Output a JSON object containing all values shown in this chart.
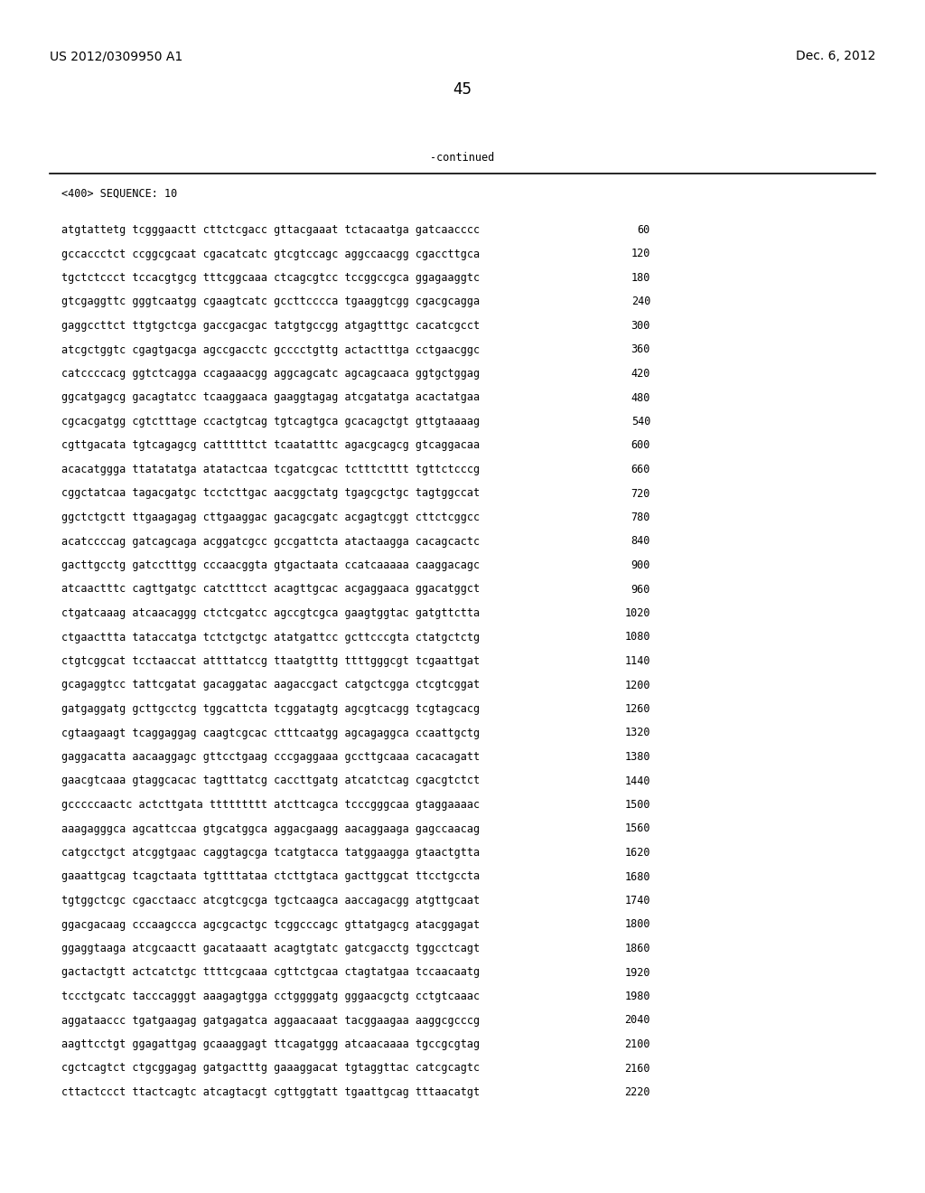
{
  "header_left": "US 2012/0309950 A1",
  "header_right": "Dec. 6, 2012",
  "page_number": "45",
  "continued_text": "-continued",
  "sequence_label": "<400> SEQUENCE: 10",
  "background_color": "#ffffff",
  "text_color": "#000000",
  "font_size": 8.5,
  "header_font_size": 10,
  "mono_font_size": 8.5,
  "sequence_lines": [
    [
      "atgtattetg tcgggaactt cttctcgacc gttacgaaat tctacaatga gatcaacccc",
      "60"
    ],
    [
      "gccaccctct ccggcgcaat cgacatcatc gtcgtccagc aggccaacgg cgaccttgca",
      "120"
    ],
    [
      "tgctctccct tccacgtgcg tttcggcaaa ctcagcgtcc tccggccgca ggagaaggtc",
      "180"
    ],
    [
      "gtcgaggttc gggtcaatgg cgaagtcatc gccttcccca tgaaggtcgg cgacgcagga",
      "240"
    ],
    [
      "gaggccttct ttgtgctcga gaccgacgac tatgtgccgg atgagtttgc cacatcgcct",
      "300"
    ],
    [
      "atcgctggtc cgagtgacga agccgacctc gcccctgttg actactttga cctgaacggc",
      "360"
    ],
    [
      "catccccacg ggtctcagga ccagaaacgg aggcagcatc agcagcaaca ggtgctggag",
      "420"
    ],
    [
      "ggcatgagcg gacagtatcc tcaaggaaca gaaggtagag atcgatatga acactatgaa",
      "480"
    ],
    [
      "cgcacgatgg cgtctttage ccactgtcag tgtcagtgca gcacagctgt gttgtaaaag",
      "540"
    ],
    [
      "cgttgacata tgtcagagcg cattttttct tcaatatttc agacgcagcg gtcaggacaa",
      "600"
    ],
    [
      "acacatggga ttatatatga atatactcaa tcgatcgcac tctttctttt tgttctcccg",
      "660"
    ],
    [
      "cggctatcaa tagacgatgc tcctcttgac aacggctatg tgagcgctgc tagtggccat",
      "720"
    ],
    [
      "ggctctgctt ttgaagagag cttgaaggac gacagcgatc acgagtcggt cttctcggcc",
      "780"
    ],
    [
      "acatccccag gatcagcaga acggatcgcc gccgattcta atactaagga cacagcactc",
      "840"
    ],
    [
      "gacttgcctg gatcctttgg cccaacggta gtgactaata ccatcaaaaa caaggacagc",
      "900"
    ],
    [
      "atcaactttc cagttgatgc catctttcct acagttgcac acgaggaaca ggacatggct",
      "960"
    ],
    [
      "ctgatcaaag atcaacaggg ctctcgatcc agccgtcgca gaagtggtac gatgttctta",
      "1020"
    ],
    [
      "ctgaacttta tataccatga tctctgctgc atatgattcc gcttcccgta ctatgctctg",
      "1080"
    ],
    [
      "ctgtcggcat tcctaaccat attttatccg ttaatgtttg ttttgggcgt tcgaattgat",
      "1140"
    ],
    [
      "gcagaggtcc tattcgatat gacaggatac aagaccgact catgctcgga ctcgtcggat",
      "1200"
    ],
    [
      "gatgaggatg gcttgcctcg tggcattcta tcggatagtg agcgtcacgg tcgtagcacg",
      "1260"
    ],
    [
      "cgtaagaagt tcaggaggag caagtcgcac ctttcaatgg agcagaggca ccaattgctg",
      "1320"
    ],
    [
      "gaggacatta aacaaggagc gttcctgaag cccgaggaaa gccttgcaaa cacacagatt",
      "1380"
    ],
    [
      "gaacgtcaaa gtaggcacac tagtttatcg caccttgatg atcatctcag cgacgtctct",
      "1440"
    ],
    [
      "gcccccaactc actcttgata ttttttttt atcttcagca tcccgggcaa gtaggaaaac",
      "1500"
    ],
    [
      "aaagagggca agcattccaa gtgcatggca aggacgaagg aacaggaaga gagccaacag",
      "1560"
    ],
    [
      "catgcctgct atcggtgaac caggtagcga tcatgtacca tatggaagga gtaactgtta",
      "1620"
    ],
    [
      "gaaattgcag tcagctaata tgttttataa ctcttgtaca gacttggcat ttcctgccta",
      "1680"
    ],
    [
      "tgtggctcgc cgacctaacc atcgtcgcga tgctcaagca aaccagacgg atgttgcaat",
      "1740"
    ],
    [
      "ggacgacaag cccaagccca agcgcactgc tcggcccagc gttatgagcg atacggagat",
      "1800"
    ],
    [
      "ggaggtaaga atcgcaactt gacataaatt acagtgtatc gatcgacctg tggcctcagt",
      "1860"
    ],
    [
      "gactactgtt actcatctgc ttttcgcaaa cgttctgcaa ctagtatgaa tccaacaatg",
      "1920"
    ],
    [
      "tccctgcatc tacccagggt aaagagtgga cctggggatg gggaacgctg cctgtcaaac",
      "1980"
    ],
    [
      "aggataaccc tgatgaagag gatgagatca aggaacaaat tacggaagaa aaggcgcccg",
      "2040"
    ],
    [
      "aagttcctgt ggagattgag gcaaaggagt ttcagatggg atcaacaaaa tgccgcgtag",
      "2100"
    ],
    [
      "cgctcagtct ctgcggagag gatgactttg gaaaggacat tgtaggttac catcgcagtc",
      "2160"
    ],
    [
      "cttactccct ttactcagtc atcagtacgt cgttggtatt tgaattgcag tttaacatgt",
      "2220"
    ]
  ]
}
